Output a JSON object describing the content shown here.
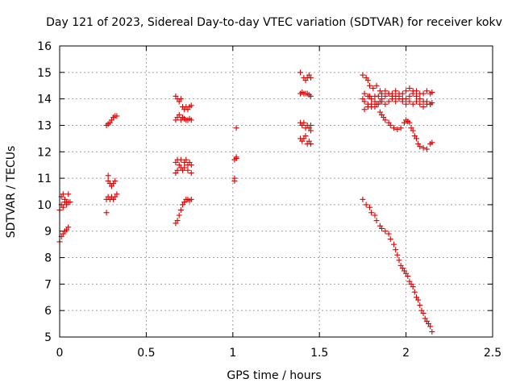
{
  "chart_data": {
    "type": "scatter",
    "title": "Day 121 of 2023, Sidereal Day-to-day VTEC variation (SDTVAR) for receiver kokv",
    "xlabel": "GPS time / hours",
    "ylabel": "SDTVAR / TECUs",
    "xlim": [
      0,
      2.5
    ],
    "ylim": [
      5,
      16
    ],
    "xticks": [
      "0",
      "0.5",
      "1",
      "1.5",
      "2",
      "2.5"
    ],
    "yticks": [
      "5",
      "6",
      "7",
      "8",
      "9",
      "10",
      "11",
      "12",
      "13",
      "14",
      "15",
      "16"
    ],
    "grid": true,
    "marker": "+",
    "series": [
      {
        "name": "SDTVAR",
        "color": "#dd0000",
        "points": [
          [
            0.0,
            8.6
          ],
          [
            0.01,
            8.8
          ],
          [
            0.02,
            8.9
          ],
          [
            0.03,
            9.0
          ],
          [
            0.04,
            9.05
          ],
          [
            0.05,
            9.15
          ],
          [
            0.0,
            9.8
          ],
          [
            0.01,
            10.0
          ],
          [
            0.01,
            10.3
          ],
          [
            0.02,
            10.4
          ],
          [
            0.02,
            9.9
          ],
          [
            0.03,
            10.1
          ],
          [
            0.03,
            10.2
          ],
          [
            0.04,
            10.0
          ],
          [
            0.04,
            10.1
          ],
          [
            0.05,
            10.1
          ],
          [
            0.05,
            10.4
          ],
          [
            0.06,
            10.1
          ],
          [
            0.27,
            9.7
          ],
          [
            0.27,
            10.2
          ],
          [
            0.28,
            10.3
          ],
          [
            0.28,
            10.9
          ],
          [
            0.28,
            11.1
          ],
          [
            0.29,
            10.2
          ],
          [
            0.29,
            10.8
          ],
          [
            0.3,
            10.3
          ],
          [
            0.3,
            10.7
          ],
          [
            0.31,
            10.2
          ],
          [
            0.31,
            10.8
          ],
          [
            0.32,
            10.3
          ],
          [
            0.32,
            10.9
          ],
          [
            0.33,
            10.4
          ],
          [
            0.27,
            13.0
          ],
          [
            0.28,
            13.05
          ],
          [
            0.29,
            13.1
          ],
          [
            0.3,
            13.2
          ],
          [
            0.31,
            13.3
          ],
          [
            0.32,
            13.35
          ],
          [
            0.33,
            13.35
          ],
          [
            0.67,
            9.3
          ],
          [
            0.68,
            9.4
          ],
          [
            0.69,
            9.6
          ],
          [
            0.7,
            9.8
          ],
          [
            0.71,
            10.0
          ],
          [
            0.72,
            10.1
          ],
          [
            0.73,
            10.2
          ],
          [
            0.74,
            10.2
          ],
          [
            0.75,
            10.15
          ],
          [
            0.76,
            10.2
          ],
          [
            0.67,
            11.2
          ],
          [
            0.67,
            11.6
          ],
          [
            0.68,
            11.3
          ],
          [
            0.68,
            11.7
          ],
          [
            0.69,
            11.5
          ],
          [
            0.7,
            11.4
          ],
          [
            0.7,
            11.7
          ],
          [
            0.71,
            11.3
          ],
          [
            0.72,
            11.6
          ],
          [
            0.72,
            11.4
          ],
          [
            0.73,
            11.7
          ],
          [
            0.74,
            11.3
          ],
          [
            0.74,
            11.5
          ],
          [
            0.75,
            11.6
          ],
          [
            0.76,
            11.5
          ],
          [
            0.76,
            11.2
          ],
          [
            0.67,
            13.2
          ],
          [
            0.68,
            13.3
          ],
          [
            0.69,
            13.4
          ],
          [
            0.7,
            13.2
          ],
          [
            0.71,
            13.3
          ],
          [
            0.72,
            13.25
          ],
          [
            0.73,
            13.2
          ],
          [
            0.74,
            13.2
          ],
          [
            0.75,
            13.25
          ],
          [
            0.76,
            13.2
          ],
          [
            0.67,
            14.1
          ],
          [
            0.68,
            14.0
          ],
          [
            0.69,
            13.9
          ],
          [
            0.7,
            14.0
          ],
          [
            0.71,
            13.7
          ],
          [
            0.72,
            13.6
          ],
          [
            0.73,
            13.7
          ],
          [
            0.74,
            13.6
          ],
          [
            0.75,
            13.7
          ],
          [
            0.76,
            13.75
          ],
          [
            1.01,
            10.9
          ],
          [
            1.01,
            11.0
          ],
          [
            1.01,
            11.7
          ],
          [
            1.02,
            11.8
          ],
          [
            1.02,
            11.75
          ],
          [
            1.02,
            12.9
          ],
          [
            1.39,
            15.0
          ],
          [
            1.41,
            14.8
          ],
          [
            1.42,
            14.7
          ],
          [
            1.43,
            14.8
          ],
          [
            1.44,
            14.9
          ],
          [
            1.45,
            14.8
          ],
          [
            1.39,
            14.2
          ],
          [
            1.4,
            14.25
          ],
          [
            1.41,
            14.2
          ],
          [
            1.42,
            14.2
          ],
          [
            1.43,
            14.2
          ],
          [
            1.44,
            14.15
          ],
          [
            1.45,
            14.1
          ],
          [
            1.39,
            13.1
          ],
          [
            1.4,
            13.0
          ],
          [
            1.41,
            13.1
          ],
          [
            1.42,
            12.9
          ],
          [
            1.43,
            13.0
          ],
          [
            1.44,
            12.9
          ],
          [
            1.45,
            12.8
          ],
          [
            1.45,
            13.0
          ],
          [
            1.39,
            12.5
          ],
          [
            1.4,
            12.4
          ],
          [
            1.41,
            12.5
          ],
          [
            1.42,
            12.6
          ],
          [
            1.43,
            12.3
          ],
          [
            1.44,
            12.4
          ],
          [
            1.45,
            12.3
          ],
          [
            1.75,
            10.2
          ],
          [
            1.77,
            10.0
          ],
          [
            1.79,
            9.9
          ],
          [
            1.8,
            9.7
          ],
          [
            1.82,
            9.6
          ],
          [
            1.83,
            9.4
          ],
          [
            1.85,
            9.2
          ],
          [
            1.86,
            9.1
          ],
          [
            1.88,
            9.0
          ],
          [
            1.9,
            8.9
          ],
          [
            1.91,
            8.7
          ],
          [
            1.93,
            8.5
          ],
          [
            1.94,
            8.3
          ],
          [
            1.95,
            8.1
          ],
          [
            1.96,
            7.9
          ],
          [
            1.97,
            7.7
          ],
          [
            1.98,
            7.6
          ],
          [
            1.99,
            7.5
          ],
          [
            2.0,
            7.4
          ],
          [
            2.01,
            7.3
          ],
          [
            2.02,
            7.1
          ],
          [
            2.03,
            7.0
          ],
          [
            2.04,
            6.9
          ],
          [
            2.05,
            6.7
          ],
          [
            2.06,
            6.5
          ],
          [
            2.07,
            6.4
          ],
          [
            2.08,
            6.2
          ],
          [
            2.09,
            6.0
          ],
          [
            2.1,
            5.9
          ],
          [
            2.11,
            5.7
          ],
          [
            2.12,
            5.6
          ],
          [
            2.13,
            5.5
          ],
          [
            2.14,
            5.4
          ],
          [
            2.15,
            5.2
          ],
          [
            1.75,
            14.9
          ],
          [
            1.77,
            14.8
          ],
          [
            1.78,
            14.7
          ],
          [
            1.79,
            14.5
          ],
          [
            1.81,
            14.4
          ],
          [
            1.83,
            14.5
          ],
          [
            1.85,
            14.3
          ],
          [
            1.75,
            14.0
          ],
          [
            1.76,
            13.9
          ],
          [
            1.78,
            13.8
          ],
          [
            1.79,
            14.1
          ],
          [
            1.8,
            13.7
          ],
          [
            1.82,
            13.9
          ],
          [
            1.83,
            13.8
          ],
          [
            1.85,
            13.9
          ],
          [
            1.86,
            14.0
          ],
          [
            1.88,
            14.1
          ],
          [
            1.9,
            14.2
          ],
          [
            1.92,
            14.1
          ],
          [
            1.94,
            14.3
          ],
          [
            1.96,
            14.2
          ],
          [
            1.98,
            14.2
          ],
          [
            2.0,
            14.3
          ],
          [
            2.02,
            14.4
          ],
          [
            2.04,
            14.3
          ],
          [
            2.06,
            14.3
          ],
          [
            2.08,
            14.2
          ],
          [
            2.1,
            14.2
          ],
          [
            2.12,
            14.3
          ],
          [
            2.14,
            14.2
          ],
          [
            2.15,
            14.25
          ],
          [
            1.76,
            14.2
          ],
          [
            1.78,
            14.1
          ],
          [
            1.8,
            14.0
          ],
          [
            1.82,
            14.1
          ],
          [
            1.84,
            14.1
          ],
          [
            1.86,
            14.2
          ],
          [
            1.88,
            14.3
          ],
          [
            1.9,
            14.2
          ],
          [
            1.92,
            14.2
          ],
          [
            1.94,
            14.1
          ],
          [
            1.96,
            14.1
          ],
          [
            1.98,
            14.0
          ],
          [
            2.0,
            14.0
          ],
          [
            2.02,
            14.1
          ],
          [
            2.04,
            14.2
          ],
          [
            2.06,
            14.1
          ],
          [
            2.08,
            14.0
          ],
          [
            2.1,
            13.9
          ],
          [
            2.12,
            13.9
          ],
          [
            2.14,
            13.8
          ],
          [
            2.15,
            13.85
          ],
          [
            1.76,
            13.6
          ],
          [
            1.78,
            13.7
          ],
          [
            1.8,
            13.8
          ],
          [
            1.82,
            13.7
          ],
          [
            1.84,
            13.8
          ],
          [
            1.86,
            13.9
          ],
          [
            1.88,
            13.8
          ],
          [
            1.9,
            13.9
          ],
          [
            1.92,
            14.0
          ],
          [
            1.94,
            13.9
          ],
          [
            1.96,
            14.0
          ],
          [
            1.98,
            13.9
          ],
          [
            2.0,
            13.8
          ],
          [
            2.02,
            13.9
          ],
          [
            2.04,
            13.8
          ],
          [
            2.06,
            13.9
          ],
          [
            2.08,
            13.8
          ],
          [
            2.1,
            13.7
          ],
          [
            2.12,
            13.8
          ],
          [
            2.14,
            13.8
          ],
          [
            1.85,
            13.5
          ],
          [
            1.86,
            13.4
          ],
          [
            1.87,
            13.3
          ],
          [
            1.88,
            13.2
          ],
          [
            1.9,
            13.1
          ],
          [
            1.91,
            13.0
          ],
          [
            1.93,
            12.9
          ],
          [
            1.95,
            12.85
          ],
          [
            1.97,
            12.9
          ],
          [
            1.99,
            13.1
          ],
          [
            2.0,
            13.2
          ],
          [
            2.01,
            13.15
          ],
          [
            2.02,
            13.1
          ],
          [
            2.03,
            12.9
          ],
          [
            2.04,
            12.8
          ],
          [
            2.05,
            12.6
          ],
          [
            2.06,
            12.5
          ],
          [
            2.07,
            12.3
          ],
          [
            2.08,
            12.2
          ],
          [
            2.1,
            12.15
          ],
          [
            2.12,
            12.1
          ],
          [
            2.14,
            12.3
          ],
          [
            2.15,
            12.35
          ]
        ]
      }
    ]
  }
}
